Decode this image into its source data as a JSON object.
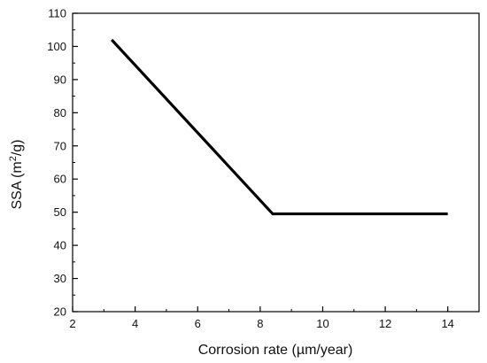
{
  "chart_data": {
    "type": "line",
    "title": "",
    "xlabel": "Corrosion rate (µm/year)",
    "ylabel": {
      "prefix": "SSA (m",
      "sup": "2",
      "suffix": "/g)"
    },
    "xlim": [
      2,
      15
    ],
    "ylim": [
      20,
      110
    ],
    "xticks": [
      2,
      4,
      6,
      8,
      10,
      12,
      14
    ],
    "yticks": [
      20,
      30,
      40,
      50,
      60,
      70,
      80,
      90,
      100,
      110
    ],
    "grid": false,
    "series": [
      {
        "x": [
          3.25,
          8.4,
          14.0
        ],
        "y": [
          102,
          49.5,
          49.5
        ],
        "color": "#000000"
      }
    ]
  }
}
